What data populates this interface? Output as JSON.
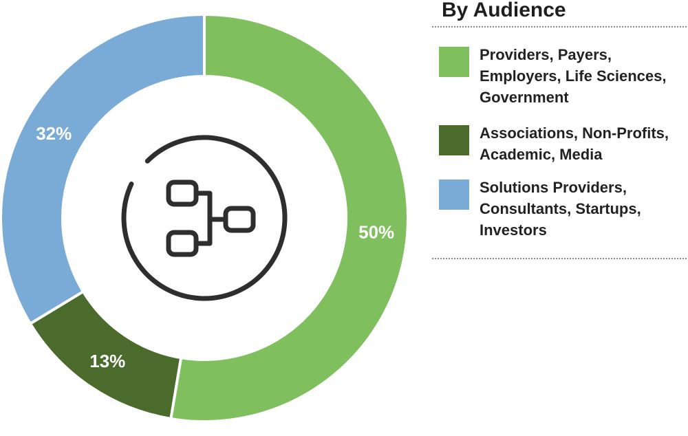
{
  "chart_data": {
    "type": "pie",
    "title": "By Audience",
    "slices": [
      {
        "label": "Providers, Payers, Employers, Life Sciences, Government",
        "value": 50,
        "display": "50%",
        "color": "#80bf5d"
      },
      {
        "label": "Associations, Non-Profits, Academic, Media",
        "value": 13,
        "display": "13%",
        "color": "#4b6b2c"
      },
      {
        "label": "Solutions Providers, Consultants, Startups, Investors",
        "value": 32,
        "display": "32%",
        "color": "#7aaad6"
      }
    ],
    "legend_placement": "right",
    "grid": false
  },
  "center_icon": {
    "name": "org-hierarchy-icon",
    "color": "#2e2e2e"
  }
}
